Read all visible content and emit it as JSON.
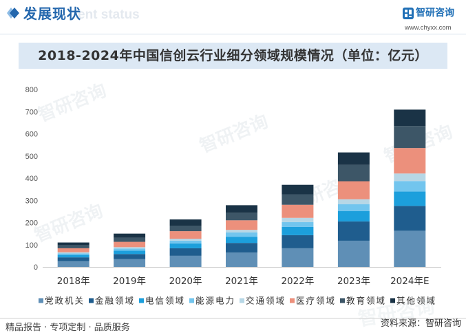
{
  "header": {
    "title": "发展现状",
    "subtitle_en": "ent status"
  },
  "logo": {
    "name": "智研咨询",
    "url": "www.chyxx.com"
  },
  "icons": {
    "section_marker": "diamond-icon",
    "brand_logo": "logo-icon"
  },
  "colors": {
    "accent": "#2467ad",
    "title_bar_bg": "#dce8f4",
    "logo_blue": "#1f6fb6"
  },
  "watermark": "智研咨询",
  "chart_data": {
    "type": "bar",
    "stacked": true,
    "title": "2018-2024年中国信创云行业细分领域规模情况（单位：亿元）",
    "categories": [
      "2018年",
      "2019年",
      "2020年",
      "2021年",
      "2022年",
      "2023年",
      "2024年E"
    ],
    "ylim": [
      0,
      800
    ],
    "yticks": [
      0,
      100,
      200,
      300,
      400,
      500,
      600,
      700,
      800
    ],
    "grid": false,
    "legend_position": "bottom",
    "series": [
      {
        "name": "党政机关",
        "color": "#5f8fb6",
        "values": [
          26,
          35,
          50,
          65,
          84,
          118,
          163
        ]
      },
      {
        "name": "金融领域",
        "color": "#1f5d8e",
        "values": [
          17,
          23,
          34,
          43,
          59,
          87,
          112
        ]
      },
      {
        "name": "电信领域",
        "color": "#1c9fdc",
        "values": [
          11,
          15,
          22,
          28,
          37,
          47,
          65
        ]
      },
      {
        "name": "能源电力",
        "color": "#72c5ee",
        "values": [
          7,
          10,
          12,
          19,
          22,
          31,
          47
        ]
      },
      {
        "name": "交通领域",
        "color": "#b7d7e6",
        "values": [
          5,
          6,
          9,
          12,
          19,
          22,
          34
        ]
      },
      {
        "name": "医疗领域",
        "color": "#ec907c",
        "values": [
          18,
          24,
          34,
          43,
          59,
          81,
          115
        ]
      },
      {
        "name": "教育领域",
        "color": "#3d5667",
        "values": [
          13,
          18,
          25,
          34,
          47,
          74,
          99
        ]
      },
      {
        "name": "其他领域",
        "color": "#1a3346",
        "values": [
          13,
          19,
          28,
          34,
          43,
          56,
          74
        ]
      }
    ]
  },
  "footer": {
    "slogan": "精品报告 · 专项定制 · 品质服务",
    "source": "资料来源：智研咨询"
  }
}
